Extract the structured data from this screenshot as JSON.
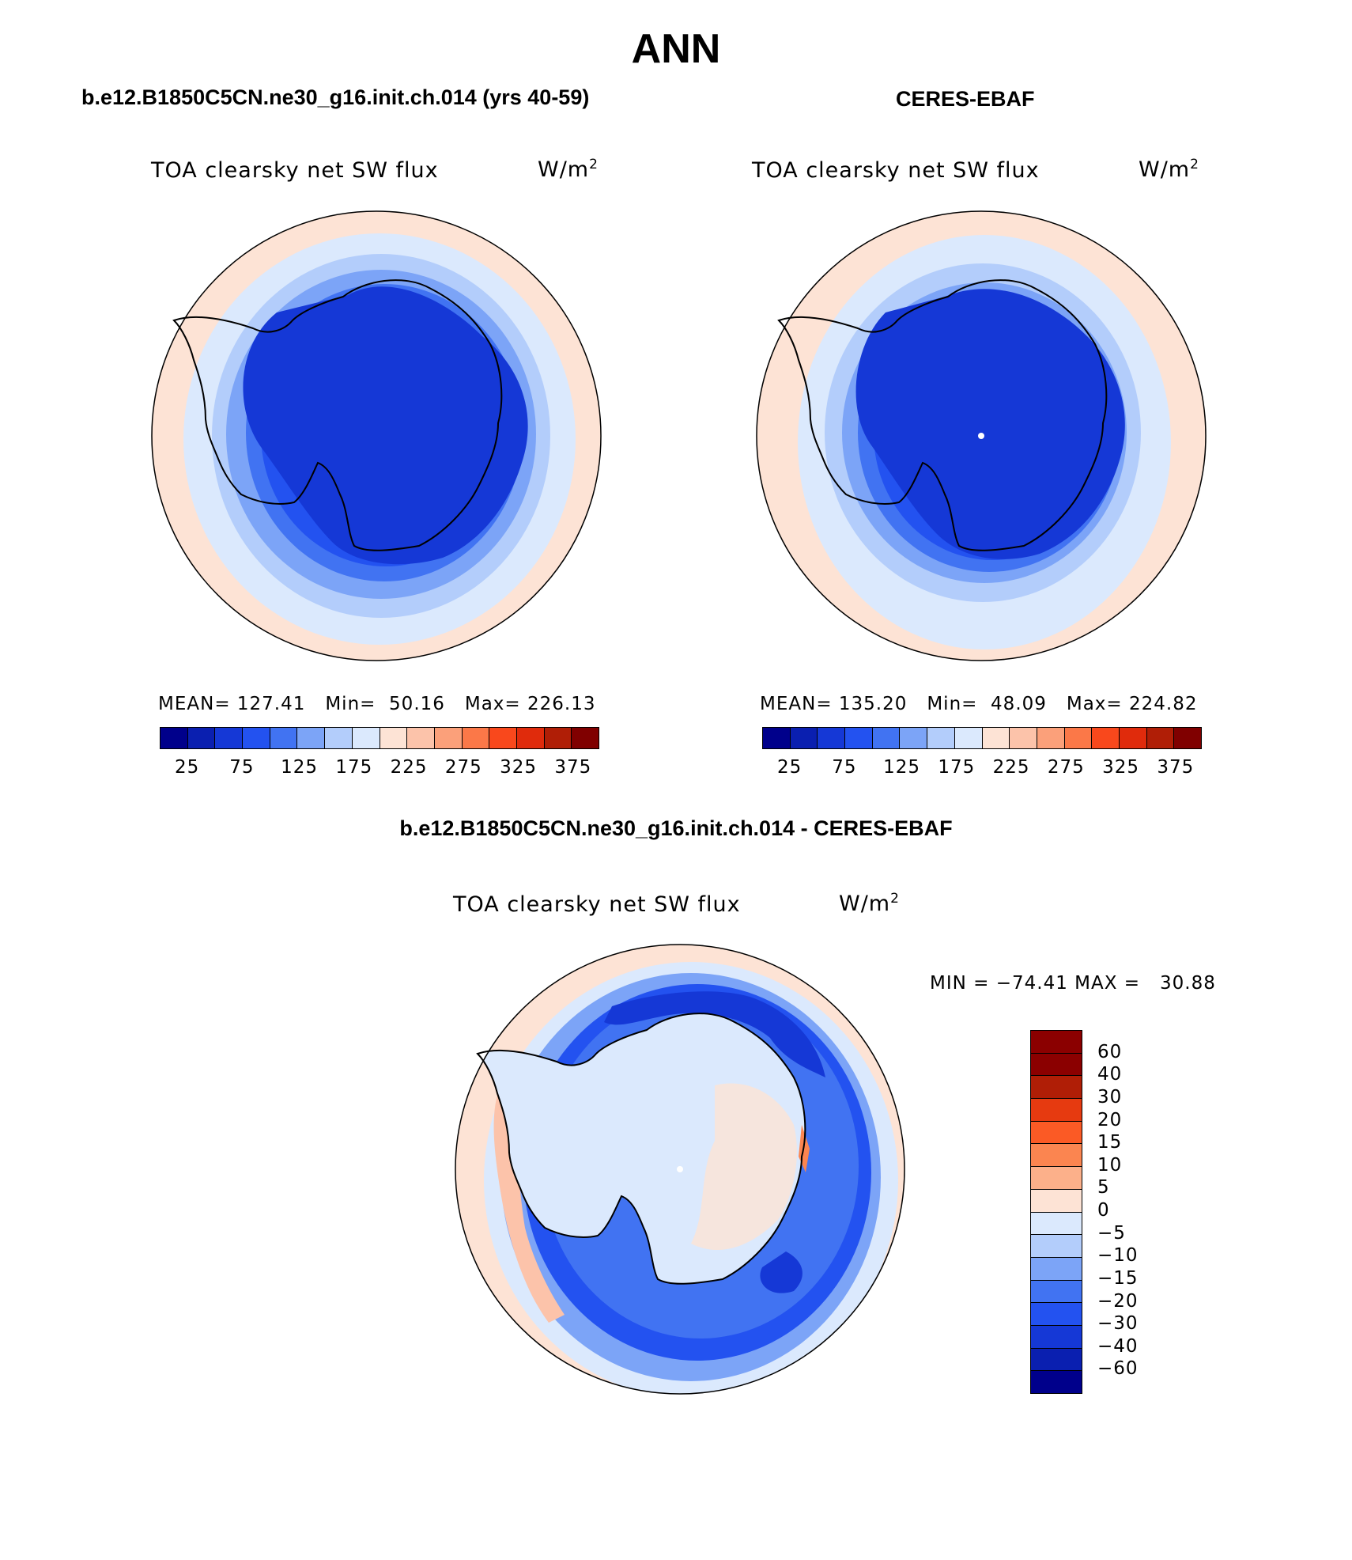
{
  "page_title": "ANN",
  "panels": {
    "model": {
      "title": "b.e12.B1850C5CN.ne30_g16.init.ch.014 (yrs 40-59)",
      "variable": "TOA clearsky net SW flux",
      "units_base": "W/m",
      "units_exp": "2",
      "mean_label": "MEAN=",
      "mean": "127.41",
      "min_label": "Min=",
      "min": "50.16",
      "max_label": "Max=",
      "max": "226.13"
    },
    "obs": {
      "title": "CERES-EBAF",
      "variable": "TOA clearsky net SW flux",
      "units_base": "W/m",
      "units_exp": "2",
      "mean_label": "MEAN=",
      "mean": "135.20",
      "min_label": "Min=",
      "min": "48.09",
      "max_label": "Max=",
      "max": "224.82"
    },
    "diff": {
      "title": "b.e12.B1850C5CN.ne30_g16.init.ch.014 - CERES-EBAF",
      "variable": "TOA clearsky net SW flux",
      "units_base": "W/m",
      "units_exp": "2",
      "minmax": "MIN = −74.41 MAX =   30.88"
    }
  },
  "colorbar_abs": {
    "colors": [
      "#00008b",
      "#0a1fb0",
      "#1538d6",
      "#2352f0",
      "#4173f2",
      "#7ca4f7",
      "#b3cdfb",
      "#dbe9fd",
      "#fde3d5",
      "#fcc3aa",
      "#fba07a",
      "#fb7848",
      "#f9481c",
      "#e02b0c",
      "#b01e06",
      "#800000"
    ],
    "tick_labels": [
      "25",
      "75",
      "125",
      "175",
      "225",
      "275",
      "325",
      "375"
    ]
  },
  "colorbar_diff": {
    "colors": [
      "#8b0000",
      "#b01e06",
      "#e63a10",
      "#fb5a25",
      "#fb8550",
      "#fcb08a",
      "#fde3d5",
      "#dbe9fd",
      "#b3cdfb",
      "#7ca4f7",
      "#4173f2",
      "#2352f0",
      "#1538d6",
      "#0a1fb0",
      "#00008b"
    ],
    "tick_labels": [
      "60",
      "40",
      "30",
      "20",
      "15",
      "10",
      "5",
      "0",
      "−5",
      "−10",
      "−15",
      "−20",
      "−30",
      "−40",
      "−60"
    ]
  }
}
